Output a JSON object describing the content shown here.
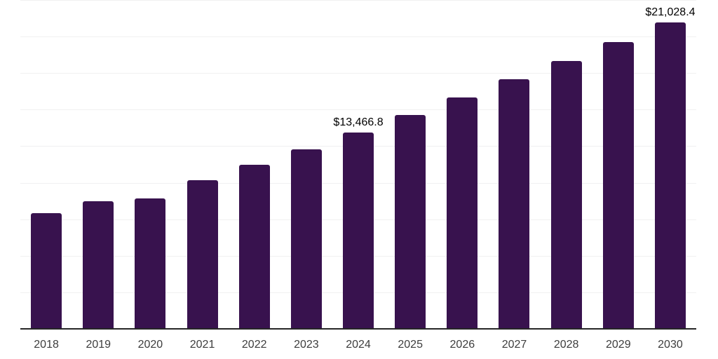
{
  "chart_data": {
    "type": "bar",
    "title": "",
    "xlabel": "",
    "ylabel": "",
    "categories": [
      "2018",
      "2019",
      "2020",
      "2021",
      "2022",
      "2023",
      "2024",
      "2025",
      "2026",
      "2027",
      "2028",
      "2029",
      "2030"
    ],
    "values": [
      7960,
      8760,
      8970,
      10200,
      11280,
      12350,
      13466.8,
      14690,
      15900,
      17140,
      18370,
      19690,
      21028.4
    ],
    "data_labels": [
      "",
      "",
      "",
      "",
      "",
      "",
      "$13,466.8",
      "",
      "",
      "",
      "",
      "",
      "$21,028.4"
    ],
    "ylim": [
      0,
      22500
    ],
    "gridline_step": 2500,
    "grid": "horizontal",
    "y_tick_labels": "none",
    "legend": "none",
    "colors": {
      "bar": "#38124E",
      "axis_line": "#262626",
      "gridline": "#F0F0F1",
      "x_tick_label": "#3D3D3D",
      "data_label": "#000000",
      "background": "#FFFFFF"
    }
  }
}
